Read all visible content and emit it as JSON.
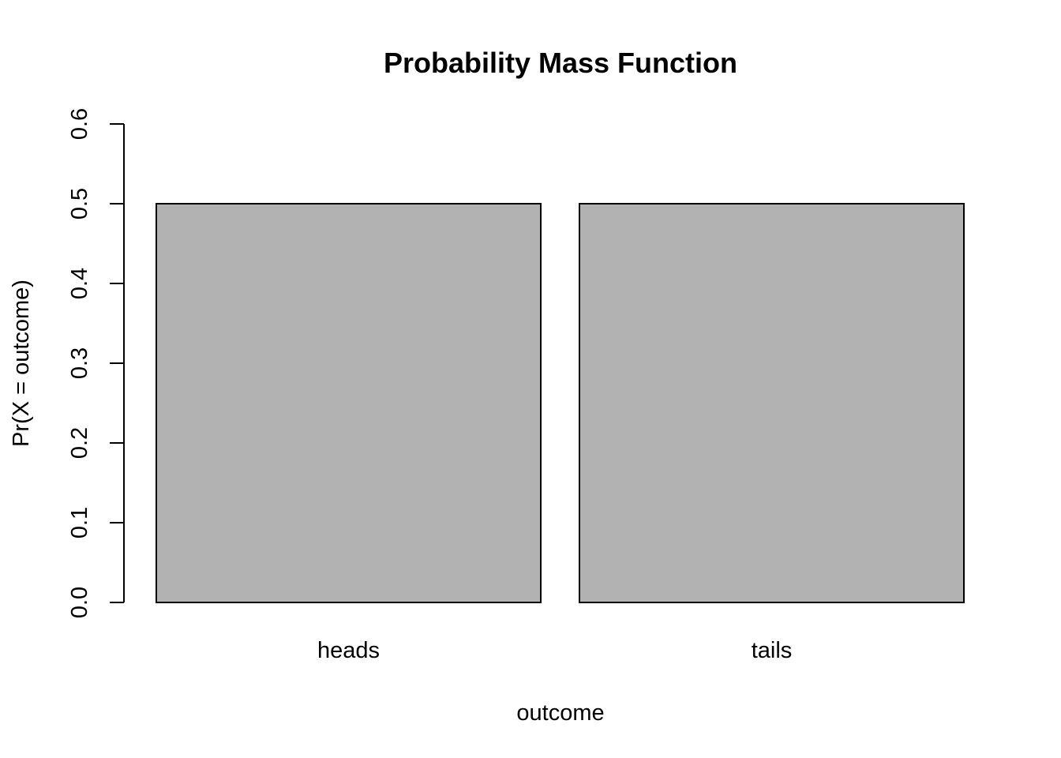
{
  "chart_data": {
    "type": "bar",
    "title": "Probability Mass Function",
    "xlabel": "outcome",
    "ylabel": "Pr(X = outcome)",
    "categories": [
      "heads",
      "tails"
    ],
    "values": [
      0.5,
      0.5
    ],
    "ylim": [
      0,
      0.6
    ],
    "yticks": [
      "0.0",
      "0.1",
      "0.2",
      "0.3",
      "0.4",
      "0.5",
      "0.6"
    ],
    "bar_color": "#b2b2b2",
    "bar_border_color": "#000000",
    "grid": false,
    "legend": "none"
  }
}
